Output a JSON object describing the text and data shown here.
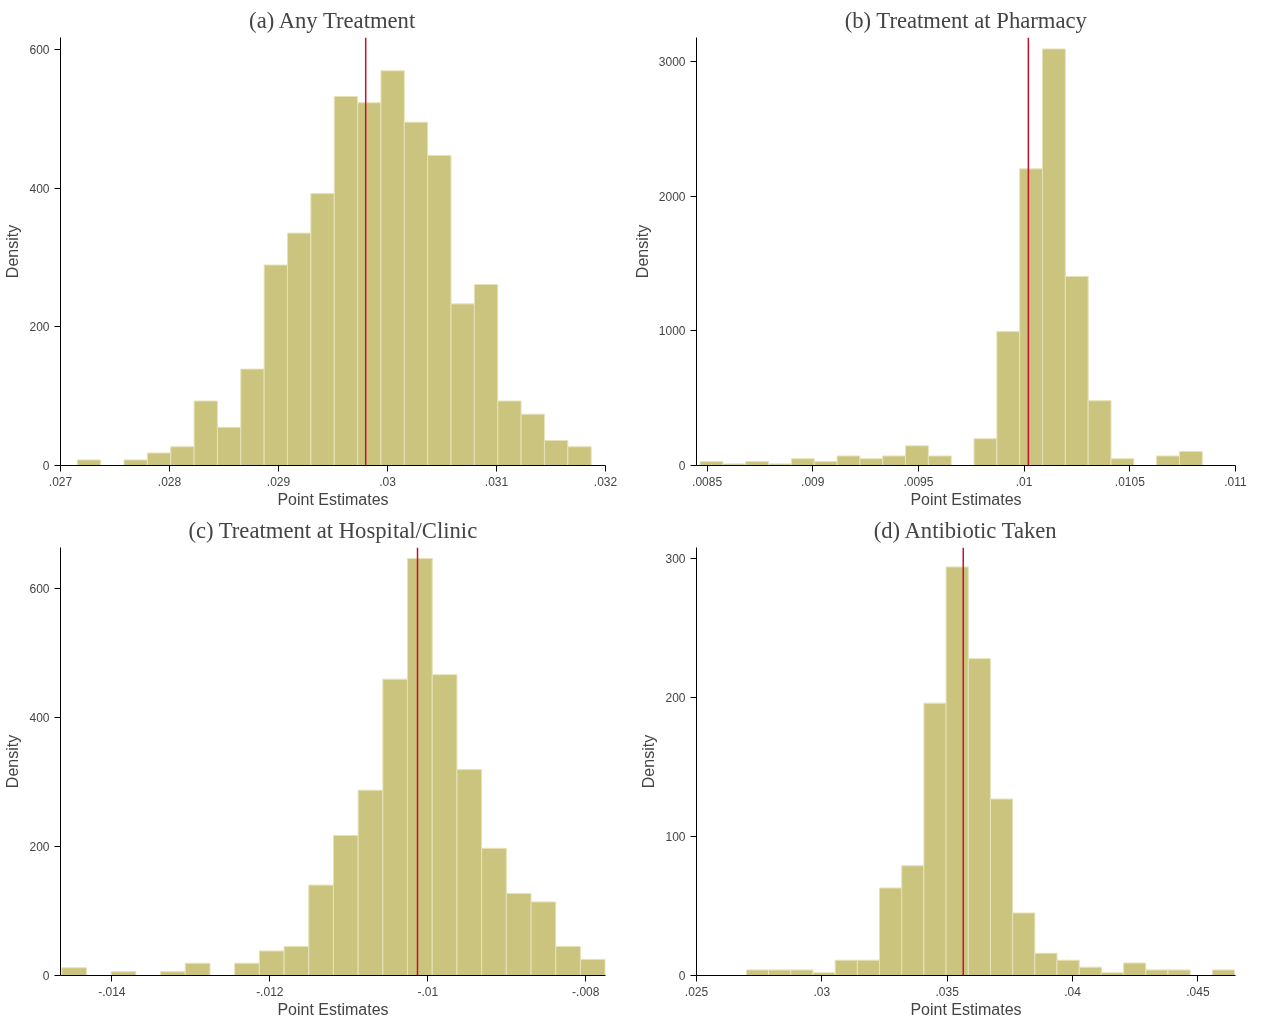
{
  "chart_data": [
    {
      "type": "histogram",
      "title": "(a) Any Treatment",
      "xlabel": "Point Estimates",
      "ylabel": "Density",
      "color": "#cbc47f",
      "bins": [
        0.027154,
        0.0273683,
        0.0275826,
        0.0277969,
        0.0280112,
        0.0282255,
        0.0284398,
        0.0286541,
        0.0288684,
        0.0290827,
        0.029297,
        0.0295113,
        0.0297256,
        0.0299399,
        0.0301542,
        0.0303685,
        0.0305828,
        0.0307971,
        0.0310114,
        0.0312257,
        0.03144,
        0.0316543,
        0.0318686
      ],
      "values": [
        8,
        0,
        8,
        18,
        27,
        93,
        55,
        139,
        289,
        335,
        392,
        532,
        523,
        569,
        495,
        447,
        233,
        261,
        93,
        74,
        36,
        27
      ],
      "xlim": [
        0.027,
        0.032
      ],
      "ylim": [
        0,
        617
      ],
      "xticks": [
        {
          "value": 0.027,
          "label": ".027"
        },
        {
          "value": 0.028,
          "label": ".028"
        },
        {
          "value": 0.029,
          "label": ".029"
        },
        {
          "value": 0.03,
          "label": ".03"
        },
        {
          "value": 0.031,
          "label": ".031"
        },
        {
          "value": 0.032,
          "label": ".032"
        }
      ],
      "yticks": [
        0,
        200,
        400,
        600
      ],
      "ref_lines": [
        {
          "axis": "x",
          "value": 0.0298,
          "color": "#c8102e"
        }
      ]
    },
    {
      "type": "histogram",
      "title": "(b) Treatment at Pharmacy",
      "xlabel": "Point Estimates",
      "ylabel": "Density",
      "color": "#cbc47f",
      "bins": [
        0.008467,
        0.008575,
        0.008683,
        0.008791,
        0.008899,
        0.009007,
        0.009115,
        0.009223,
        0.009331,
        0.009439,
        0.009547,
        0.009655,
        0.009763,
        0.009871,
        0.009979,
        0.010087,
        0.010195,
        0.010303,
        0.010411,
        0.010519,
        0.010627,
        0.010735,
        0.010843
      ],
      "values": [
        30,
        12,
        30,
        12,
        50,
        30,
        71,
        50,
        71,
        146,
        71,
        0,
        199,
        995,
        2204,
        3095,
        1405,
        481,
        50,
        0,
        71,
        104
      ],
      "xlim": [
        0.00845,
        0.011
      ],
      "ylim": [
        0,
        3180
      ],
      "xticks": [
        {
          "value": 0.0085,
          "label": ".0085"
        },
        {
          "value": 0.009,
          "label": ".009"
        },
        {
          "value": 0.0095,
          "label": ".0095"
        },
        {
          "value": 0.01,
          "label": ".01"
        },
        {
          "value": 0.0105,
          "label": ".0105"
        },
        {
          "value": 0.011,
          "label": ".011"
        }
      ],
      "yticks": [
        0,
        1000,
        2000,
        3000
      ],
      "ref_lines": [
        {
          "axis": "x",
          "value": 0.01002,
          "color": "#c8102e"
        }
      ]
    },
    {
      "type": "histogram",
      "title": "(c) Treatment at Hospital/Clinic",
      "xlabel": "Point Estimates",
      "ylabel": "Density",
      "color": "#cbc47f",
      "bins": [
        -0.014634,
        -0.0143213,
        -0.0140086,
        -0.0136959,
        -0.0133832,
        -0.0130705,
        -0.0127578,
        -0.0124451,
        -0.0121324,
        -0.0118197,
        -0.011507,
        -0.0111943,
        -0.0108816,
        -0.0105689,
        -0.0102562,
        -0.0099435,
        -0.0096308,
        -0.0093181,
        -0.0090054,
        -0.0086927,
        -0.00838,
        -0.0080673,
        -0.0077546
      ],
      "values": [
        12,
        0,
        6,
        0,
        6,
        19,
        0,
        19,
        38,
        45,
        140,
        217,
        287,
        459,
        646,
        466,
        319,
        197,
        127,
        114,
        45,
        25
      ],
      "xlim": [
        -0.01465,
        -0.00775
      ],
      "ylim": [
        0,
        663
      ],
      "xticks": [
        {
          "value": -0.014,
          "label": "-.014"
        },
        {
          "value": -0.012,
          "label": "-.012"
        },
        {
          "value": -0.01,
          "label": "-.01"
        },
        {
          "value": -0.008,
          "label": "-.008"
        }
      ],
      "yticks": [
        0,
        200,
        400,
        600
      ],
      "ref_lines": [
        {
          "axis": "x",
          "value": -0.01013,
          "color": "#c8102e"
        }
      ]
    },
    {
      "type": "histogram",
      "title": "(d) Antibiotic Taken",
      "xlabel": "Point Estimates",
      "ylabel": "Density",
      "color": "#cbc47f",
      "bins": [
        0.026991,
        0.027876,
        0.028761,
        0.029646,
        0.030531,
        0.031416,
        0.032301,
        0.033186,
        0.034071,
        0.034956,
        0.035841,
        0.036726,
        0.037611,
        0.038496,
        0.039381,
        0.040266,
        0.041151,
        0.042036,
        0.042921,
        0.043806,
        0.044691,
        0.045576,
        0.046461
      ],
      "values": [
        4,
        4,
        4,
        2,
        11,
        11,
        63,
        79,
        196,
        294,
        228,
        127,
        45,
        16,
        11,
        6,
        2,
        9,
        4,
        4,
        0,
        4
      ],
      "xlim": [
        0.025,
        0.0465
      ],
      "ylim": [
        0,
        308
      ],
      "xticks": [
        {
          "value": 0.025,
          "label": ".025"
        },
        {
          "value": 0.03,
          "label": ".03"
        },
        {
          "value": 0.035,
          "label": ".035"
        },
        {
          "value": 0.04,
          "label": ".04"
        },
        {
          "value": 0.045,
          "label": ".045"
        }
      ],
      "yticks": [
        0,
        100,
        200,
        300
      ],
      "ref_lines": [
        {
          "axis": "x",
          "value": 0.03564,
          "color": "#c8102e"
        }
      ]
    }
  ]
}
